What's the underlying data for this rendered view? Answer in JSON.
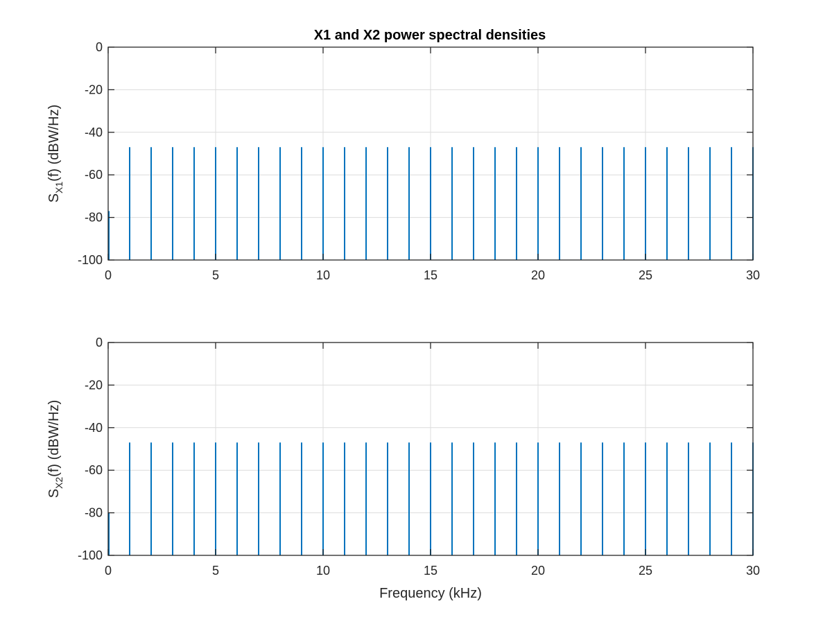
{
  "figure": {
    "title": "X1 and X2 power spectral densities"
  },
  "colors": {
    "line": "#0072BD",
    "grid": "#dcdcdc",
    "axes": "#262626",
    "background": "#ffffff"
  },
  "chart_data": [
    {
      "type": "line",
      "title": "X1 and X2 power spectral densities",
      "xlabel": "",
      "ylabel": {
        "main": "S",
        "sub": "X1",
        "rest": "(f) (dBW/Hz)"
      },
      "xlim": [
        0,
        30
      ],
      "ylim": [
        -100,
        0
      ],
      "xticks": [
        0,
        5,
        10,
        15,
        20,
        25,
        30
      ],
      "yticks": [
        0,
        -20,
        -40,
        -60,
        -80,
        -100
      ],
      "grid": true,
      "series": [
        {
          "description": "spectral lines at harmonics of 1 kHz",
          "x": [
            1,
            2,
            3,
            4,
            5,
            6,
            7,
            8,
            9,
            10,
            11,
            12,
            13,
            14,
            15,
            16,
            17,
            18,
            19,
            20,
            21,
            22,
            23,
            24,
            25,
            26,
            27,
            28,
            29,
            30
          ],
          "peak_db": [
            -47,
            -47,
            -47,
            -47,
            -47,
            -47,
            -47,
            -47,
            -47,
            -47,
            -47,
            -47,
            -47,
            -47,
            -47,
            -47,
            -47,
            -47,
            -47,
            -47,
            -47,
            -47,
            -47,
            -47,
            -47,
            -47,
            -47,
            -47,
            -47,
            -47
          ],
          "floor_db": -100,
          "edge_x": 0,
          "edge_peak_db": -77
        }
      ]
    },
    {
      "type": "line",
      "title": "",
      "xlabel": "Frequency (kHz)",
      "ylabel": {
        "main": "S",
        "sub": "X2",
        "rest": "(f) (dBW/Hz)"
      },
      "xlim": [
        0,
        30
      ],
      "ylim": [
        -100,
        0
      ],
      "xticks": [
        0,
        5,
        10,
        15,
        20,
        25,
        30
      ],
      "yticks": [
        0,
        -20,
        -40,
        -60,
        -80,
        -100
      ],
      "grid": true,
      "series": [
        {
          "description": "spectral lines at harmonics of 1 kHz",
          "x": [
            1,
            2,
            3,
            4,
            5,
            6,
            7,
            8,
            9,
            10,
            11,
            12,
            13,
            14,
            15,
            16,
            17,
            18,
            19,
            20,
            21,
            22,
            23,
            24,
            25,
            26,
            27,
            28,
            29,
            30
          ],
          "peak_db": [
            -47,
            -47,
            -47,
            -47,
            -47,
            -47,
            -47,
            -47,
            -47,
            -47,
            -47,
            -47,
            -47,
            -47,
            -47,
            -47,
            -47,
            -47,
            -47,
            -47,
            -47,
            -47,
            -47,
            -47,
            -47,
            -47,
            -47,
            -47,
            -47,
            -47
          ],
          "floor_db": -100,
          "edge_x": 0,
          "edge_peak_db": -80
        }
      ]
    }
  ]
}
